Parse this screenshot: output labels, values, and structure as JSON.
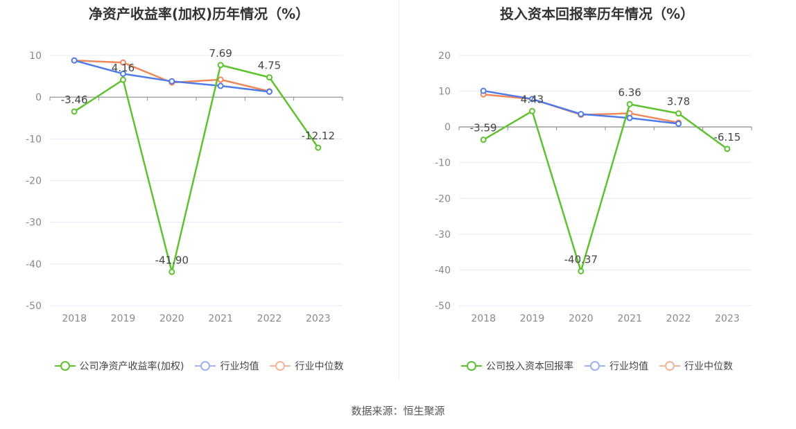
{
  "source_label": "数据来源：恒生聚源",
  "colors": {
    "company": "#5ec12e",
    "average": "#4f7be8",
    "median": "#f0875a",
    "axis": "#8a8a8a",
    "grid": "#e6e8f2",
    "tick": "#888888",
    "label": "#444444"
  },
  "chart_data": [
    {
      "type": "line",
      "title": "净资产收益率(加权)历年情况（%）",
      "categories": [
        "2018",
        "2019",
        "2020",
        "2021",
        "2022",
        "2023"
      ],
      "ylim": [
        -50,
        10
      ],
      "ytick_labels": [
        "10",
        "0",
        "-10",
        "-20",
        "-30",
        "-40",
        "-50"
      ],
      "yticks": [
        10,
        0,
        -10,
        -20,
        -30,
        -40,
        -50
      ],
      "grid": true,
      "legend_position": "bottom",
      "series": [
        {
          "name": "公司净资产收益率(加权)",
          "key": "company",
          "values": [
            -3.46,
            4.16,
            -41.9,
            7.69,
            4.75,
            -12.12
          ],
          "labels": [
            "-3.46",
            "4.16",
            "-41.90",
            "7.69",
            "4.75",
            "-12.12"
          ]
        },
        {
          "name": "行业均值",
          "key": "average",
          "values": [
            8.8,
            5.6,
            3.8,
            2.7,
            1.3,
            null
          ]
        },
        {
          "name": "行业中位数",
          "key": "median",
          "values": [
            8.8,
            8.3,
            3.5,
            4.2,
            1.4,
            null
          ]
        }
      ]
    },
    {
      "type": "line",
      "title": "投入资本回报率历年情况（%）",
      "categories": [
        "2018",
        "2019",
        "2020",
        "2021",
        "2022",
        "2023"
      ],
      "ylim": [
        -50,
        20
      ],
      "ytick_labels": [
        "20",
        "10",
        "0",
        "-10",
        "-20",
        "-30",
        "-40",
        "-50"
      ],
      "yticks": [
        20,
        10,
        0,
        -10,
        -20,
        -30,
        -40,
        -50
      ],
      "grid": true,
      "legend_position": "bottom",
      "series": [
        {
          "name": "公司投入资本回报率",
          "key": "company",
          "values": [
            -3.59,
            4.43,
            -40.37,
            6.36,
            3.78,
            -6.15
          ],
          "labels": [
            "-3.59",
            "4.43",
            "-40.37",
            "6.36",
            "3.78",
            "-6.15"
          ]
        },
        {
          "name": "行业均值",
          "key": "average",
          "values": [
            10.1,
            7.8,
            3.6,
            2.5,
            0.9,
            null
          ]
        },
        {
          "name": "行业中位数",
          "key": "median",
          "values": [
            9.1,
            7.8,
            3.4,
            3.8,
            1.2,
            null
          ]
        }
      ]
    }
  ]
}
